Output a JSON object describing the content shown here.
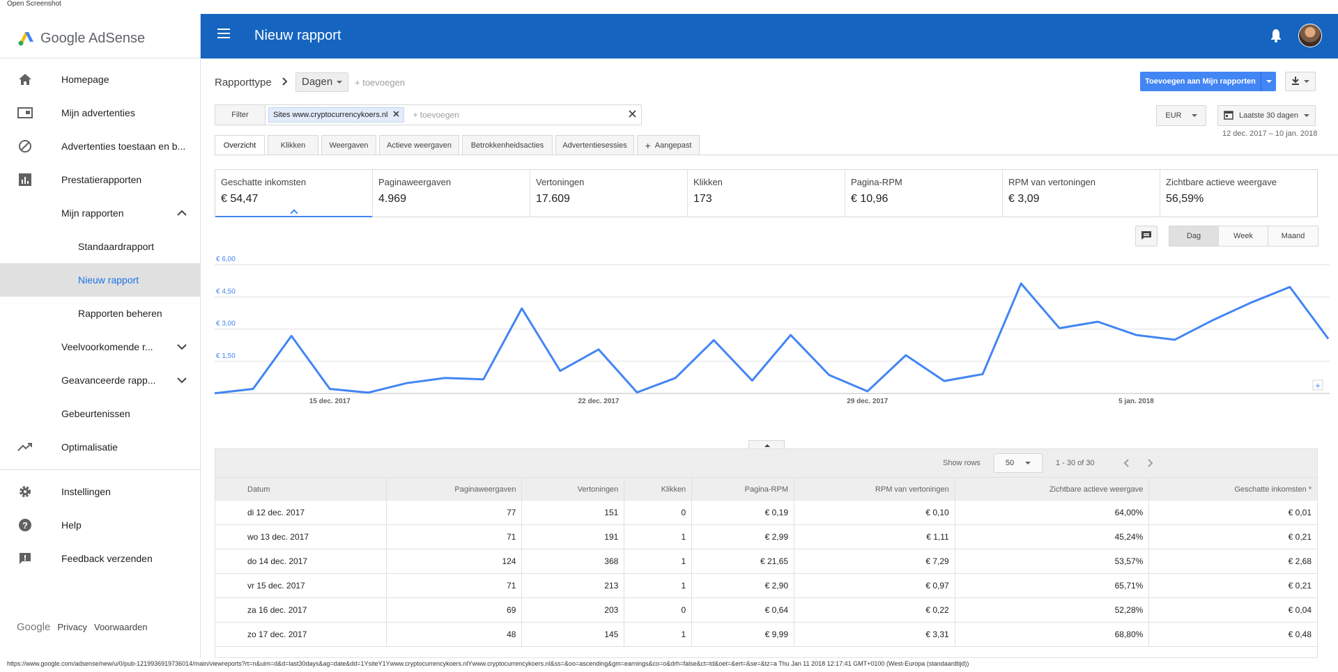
{
  "caption": "Open Screenshot",
  "brand": {
    "google": "Google",
    "product": "AdSense"
  },
  "sidebar": {
    "items": [
      {
        "label": "Homepage",
        "icon": "home-icon"
      },
      {
        "label": "Mijn advertenties",
        "icon": "ads-icon"
      },
      {
        "label": "Advertenties toestaan en b...",
        "icon": "block-icon"
      },
      {
        "label": "Prestatierapporten",
        "icon": "bar-chart-icon"
      },
      {
        "label": "Mijn rapporten"
      },
      {
        "label": "Standaardrapport"
      },
      {
        "label": "Nieuw rapport"
      },
      {
        "label": "Rapporten beheren"
      },
      {
        "label": "Veelvoorkomende r..."
      },
      {
        "label": "Geavanceerde rapp..."
      },
      {
        "label": "Gebeurtenissen"
      },
      {
        "label": "Optimalisatie",
        "icon": "trending-up-icon"
      },
      {
        "label": "Instellingen",
        "icon": "gear-icon"
      },
      {
        "label": "Help",
        "icon": "help-icon"
      },
      {
        "label": "Feedback verzenden",
        "icon": "feedback-icon"
      }
    ],
    "footer": {
      "google": "Google",
      "privacy": "Privacy",
      "terms": "Voorwaarden"
    }
  },
  "header": {
    "title": "Nieuw rapport"
  },
  "report": {
    "type_label": "Rapporttype",
    "dimension": "Dagen",
    "add": "+ toevoegen",
    "add_to_reports": "Toevoegen aan Mijn rapporten",
    "filter_label": "Filter",
    "filter_chip": "Sites www.cryptocurrencykoers.nl",
    "filter_add": "+ toevoegen",
    "currency": "EUR",
    "range_label": "Laatste 30 dagen",
    "range_dates": "12 dec. 2017 – 10 jan. 2018"
  },
  "tabs": [
    "Overzicht",
    "Klikken",
    "Weergaven",
    "Actieve weergaven",
    "Betrokkenheidsacties",
    "Advertentiesessies",
    "Aangepast"
  ],
  "metrics": [
    {
      "label": "Geschatte inkomsten",
      "value": "€ 54,47"
    },
    {
      "label": "Paginaweergaven",
      "value": "4.969"
    },
    {
      "label": "Vertoningen",
      "value": "17.609"
    },
    {
      "label": "Klikken",
      "value": "173"
    },
    {
      "label": "Pagina-RPM",
      "value": "€ 10,96"
    },
    {
      "label": "RPM van vertoningen",
      "value": "€ 3,09"
    },
    {
      "label": "Zichtbare actieve weergave",
      "value": "56,59%"
    }
  ],
  "granularity": [
    "Dag",
    "Week",
    "Maand"
  ],
  "chart_data": {
    "type": "line",
    "y_ticks": [
      "€ 6,00",
      "€ 4,50",
      "€ 3,00",
      "€ 1,50"
    ],
    "x_ticks": [
      "15 dec. 2017",
      "22 dec. 2017",
      "29 dec. 2017",
      "5 jan. 2018"
    ],
    "ylim": [
      0,
      6
    ],
    "series": [
      {
        "values": [
          0.01,
          0.21,
          2.68,
          0.21,
          0.04,
          0.48,
          0.72,
          0.66,
          3.96,
          1.05,
          2.05,
          0.05,
          0.72,
          2.48,
          0.6,
          2.72,
          0.86,
          0.1,
          1.78,
          0.58,
          0.9,
          5.12,
          3.04,
          3.34,
          2.72,
          2.5,
          3.42,
          4.24,
          4.96,
          2.55
        ]
      }
    ],
    "grid": true,
    "accent": "#4285f4"
  },
  "table": {
    "show_rows_label": "Show rows",
    "rows_per_page": "50",
    "pagination": "1 - 30 of 30",
    "columns": [
      "Datum",
      "Paginaweergaven",
      "Vertoningen",
      "Klikken",
      "Pagina-RPM",
      "RPM van vertoningen",
      "Zichtbare actieve weergave",
      "Geschatte inkomsten *"
    ],
    "rows": [
      [
        "di 12 dec. 2017",
        "77",
        "151",
        "0",
        "€ 0,19",
        "€ 0,10",
        "64,00%",
        "€ 0,01"
      ],
      [
        "wo 13 dec. 2017",
        "71",
        "191",
        "1",
        "€ 2,99",
        "€ 1,11",
        "45,24%",
        "€ 0,21"
      ],
      [
        "do 14 dec. 2017",
        "124",
        "368",
        "1",
        "€ 21,65",
        "€ 7,29",
        "53,57%",
        "€ 2,68"
      ],
      [
        "vr 15 dec. 2017",
        "71",
        "213",
        "1",
        "€ 2,90",
        "€ 0,97",
        "65,71%",
        "€ 0,21"
      ],
      [
        "za 16 dec. 2017",
        "69",
        "203",
        "0",
        "€ 0,64",
        "€ 0,22",
        "52,28%",
        "€ 0,04"
      ],
      [
        "zo 17 dec. 2017",
        "48",
        "145",
        "1",
        "€ 9,99",
        "€ 3,31",
        "68,80%",
        "€ 0,48"
      ]
    ]
  },
  "status_url": "https://www.google.com/adsense/new/u/0/pub-1219936919736014/main/viewreports?rt=n&uim=d&d=last30days&ag=date&dd=1YsiteY1Ywww.cryptocurrencykoers.nlYwww.cryptocurrencykoers.nl&ss=&oo=ascending&gm=earnings&co=o&drh=false&ct=td&oet=&ert=&se=&tz=a Thu Jan 11 2018 12:17:41 GMT+0100 (West-Europa (standaardtijd))"
}
